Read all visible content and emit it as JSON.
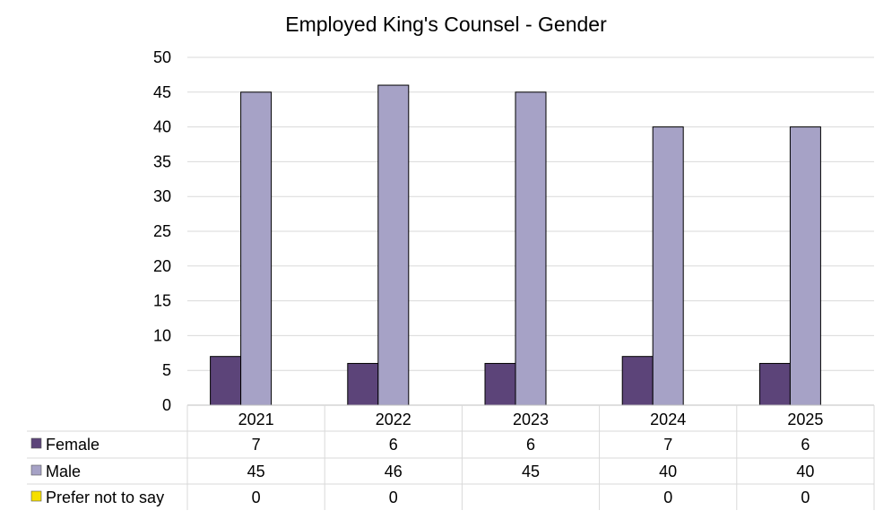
{
  "chart_data": {
    "type": "bar",
    "title": "Employed King's Counsel - Gender",
    "categories": [
      "2021",
      "2022",
      "2023",
      "2024",
      "2025"
    ],
    "series": [
      {
        "name": "Female",
        "color": "#5c4479",
        "values": [
          7,
          6,
          6,
          7,
          6
        ]
      },
      {
        "name": "Male",
        "color": "#a6a2c6",
        "values": [
          45,
          46,
          45,
          40,
          40
        ]
      },
      {
        "name": "Prefer not to say",
        "color": "#f6df00",
        "values": [
          0,
          0,
          null,
          0,
          0
        ]
      }
    ],
    "ylim": [
      0,
      50
    ],
    "yticks": [
      0,
      5,
      10,
      15,
      20,
      25,
      30,
      35,
      40,
      45,
      50
    ],
    "grid": true,
    "legend": "data table below chart"
  }
}
